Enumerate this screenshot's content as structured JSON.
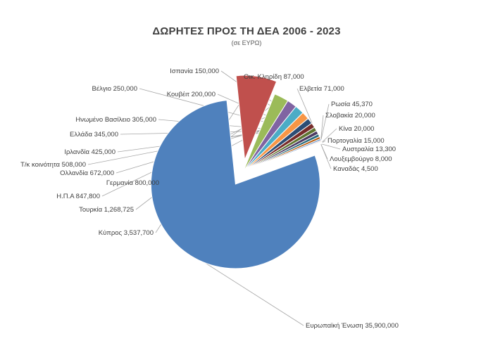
{
  "chart_data": {
    "type": "pie",
    "title": "ΔΩΡΗΤΕΣ ΠΡΟΣ ΤΗ ΔΕΑ 2006 - 2023",
    "subtitle": "(σε ΕΥΡΩ)",
    "slices": [
      {
        "label": "Ευρωπαϊκή Ένωση 35,900,000",
        "value": 35900000,
        "color": "#4f81bd"
      },
      {
        "label": "Κύπρος 3,537,700",
        "value": 3537700,
        "color": "#c0504d"
      },
      {
        "label": "Τουρκία 1,268,725",
        "value": 1268725,
        "color": "#9bbb59"
      },
      {
        "label": "Η.Π.Α 847,800",
        "value": 847800,
        "color": "#8064a2"
      },
      {
        "label": "Γερμανία 800,000",
        "value": 800000,
        "color": "#4bacc6"
      },
      {
        "label": "Ολλανδία 672,000",
        "value": 672000,
        "color": "#f79646"
      },
      {
        "label": "Τ/κ κοινότητα 508,000",
        "value": 508000,
        "color": "#2c4d75"
      },
      {
        "label": "Ιρλανδία 425,000",
        "value": 425000,
        "color": "#772c2a"
      },
      {
        "label": "Ελλάδα 345,000",
        "value": 345000,
        "color": "#5f7530"
      },
      {
        "label": "Ηνωμένο Βασίλειο 305,000",
        "value": 305000,
        "color": "#4d3b62"
      },
      {
        "label": "Βέλγιο 250,000",
        "value": 250000,
        "color": "#276a7c"
      },
      {
        "label": "Κουβέιτ 200,000",
        "value": 200000,
        "color": "#b65708"
      },
      {
        "label": "Ισπανία 150,000",
        "value": 150000,
        "color": "#729aca"
      },
      {
        "label": "Οικ. Κληρίδη 87,000",
        "value": 87000,
        "color": "#d99694"
      },
      {
        "label": "Ελβετία 71,000",
        "value": 71000,
        "color": "#b7dd8b"
      },
      {
        "label": "Ρωσία 45,370",
        "value": 45370,
        "color": "#a593c1"
      },
      {
        "label": "Σλοβακία 20,000",
        "value": 20000,
        "color": "#8fd0e0"
      },
      {
        "label": "Κίνα 20,000",
        "value": 20000,
        "color": "#fac090"
      },
      {
        "label": "Πορτογαλία 15,000",
        "value": 15000,
        "color": "#376092"
      },
      {
        "label": "Αυστραλία 13,300",
        "value": 13300,
        "color": "#953735"
      },
      {
        "label": "Λουξεμβούργο 8,000",
        "value": 8000,
        "color": "#77933c"
      },
      {
        "label": "Καναδάς 4,500",
        "value": 4500,
        "color": "#604a7b"
      }
    ]
  }
}
